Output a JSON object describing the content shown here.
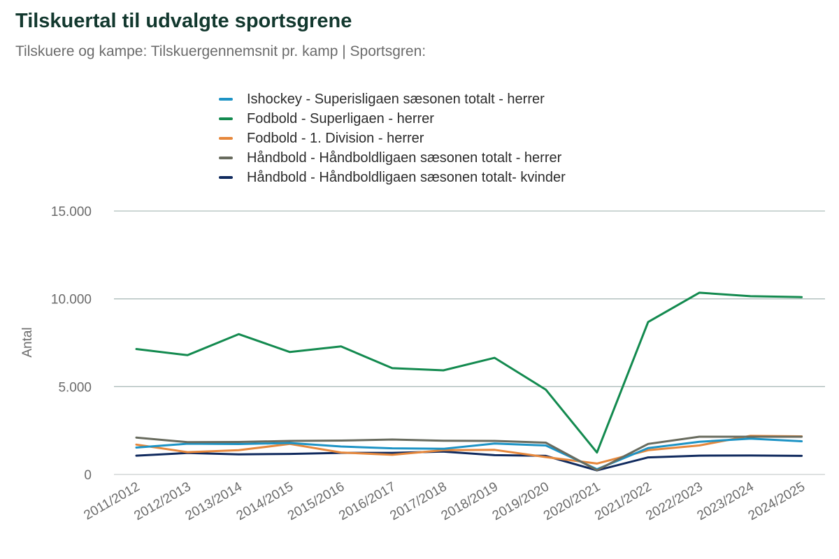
{
  "header": {
    "title": "Tilskuertal til udvalgte sportsgrene",
    "subtitle": "Tilskuere og kampe: Tilskuergennemsnit pr. kamp | Sportsgren:"
  },
  "chart_data": {
    "type": "line",
    "title": "Tilskuertal til udvalgte sportsgrene",
    "subtitle": "Tilskuere og kampe: Tilskuergennemsnit pr. kamp | Sportsgren:",
    "xlabel": "",
    "ylabel": "Antal",
    "ylim": [
      0,
      15000
    ],
    "yticks": [
      0,
      5000,
      10000,
      15000
    ],
    "ytick_labels": [
      "0",
      "5.000",
      "10.000",
      "15.000"
    ],
    "grid": true,
    "legend_position": "top",
    "categories": [
      "2011/2012",
      "2012/2013",
      "2013/2014",
      "2014/2015",
      "2015/2016",
      "2016/2017",
      "2017/2018",
      "2018/2019",
      "2019/2020",
      "2020/2021",
      "2021/2022",
      "2022/2023",
      "2023/2024",
      "2024/2025"
    ],
    "series": [
      {
        "name": "Ishockey - Superisligaen sæsonen totalt - herrer",
        "color": "#1d93c5",
        "values": [
          1530,
          1750,
          1730,
          1790,
          1590,
          1490,
          1460,
          1760,
          1650,
          300,
          1500,
          1860,
          2040,
          1890
        ]
      },
      {
        "name": "Fodbold - Superligaen - herrer",
        "color": "#138a4f",
        "values": [
          7140,
          6790,
          7990,
          6970,
          7290,
          6050,
          5930,
          6640,
          4830,
          1250,
          8680,
          10350,
          10150,
          10100
        ]
      },
      {
        "name": "Fodbold - 1. Division - herrer",
        "color": "#e6873b",
        "values": [
          1700,
          1270,
          1380,
          1740,
          1250,
          1120,
          1380,
          1400,
          990,
          620,
          1380,
          1650,
          2200,
          2170
        ]
      },
      {
        "name": "Håndbold - Håndboldligaen sæsonen totalt - herrer",
        "color": "#686b5e",
        "values": [
          2100,
          1840,
          1850,
          1910,
          1930,
          1990,
          1920,
          1910,
          1810,
          240,
          1740,
          2150,
          2150,
          2150
        ]
      },
      {
        "name": "Håndbold - Håndboldligaen sæsonen totalt- kvinder",
        "color": "#102a5e",
        "values": [
          1070,
          1220,
          1140,
          1170,
          1230,
          1230,
          1300,
          1100,
          1060,
          230,
          970,
          1070,
          1080,
          1060
        ]
      }
    ]
  }
}
